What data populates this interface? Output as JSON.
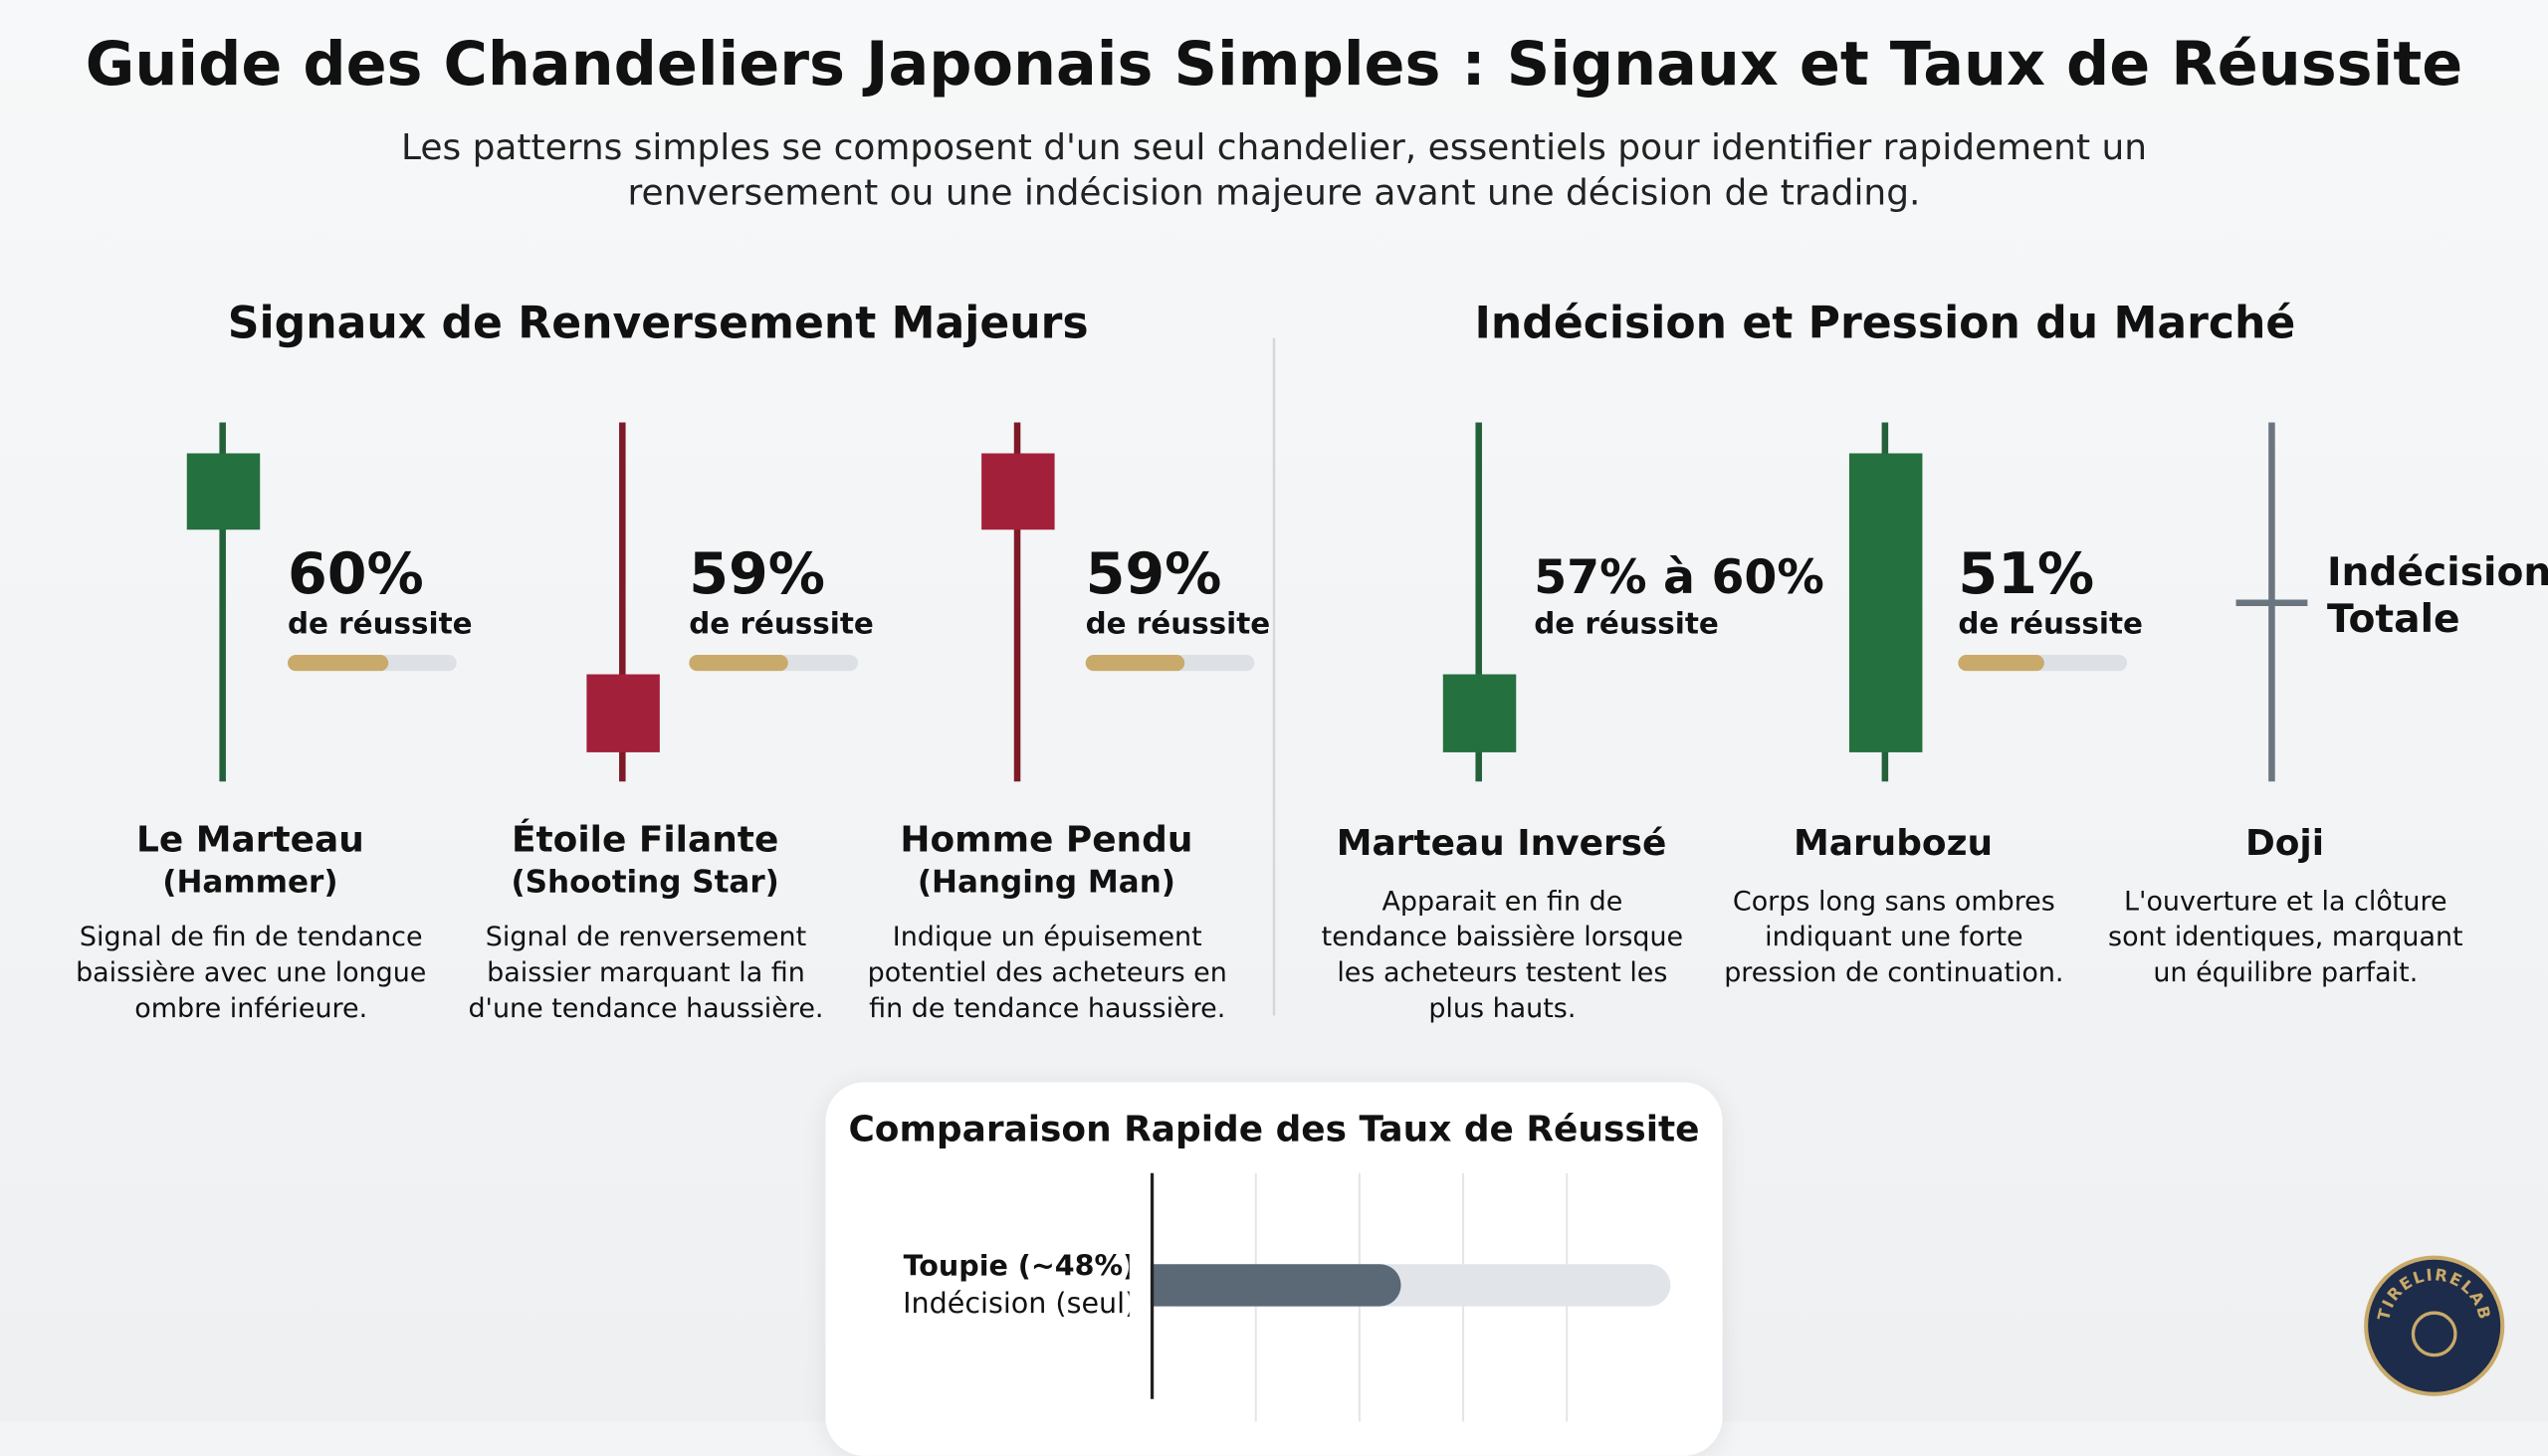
{
  "header": {
    "title": "Guide des Chandeliers Japonais Simples : Signaux et Taux de Réussite",
    "subtitle": "Les patterns simples se composent d'un seul chandelier, essentiels pour identifier rapidement un renversement ou une indécision majeure avant une décision de trading."
  },
  "rate_range": [
    0,
    100
  ],
  "sections": [
    {
      "title": "Signaux de Renversement Majeurs",
      "cards": [
        {
          "rate": {
            "value": 60,
            "label": "60%"
          },
          "rate_caption": "de réussite",
          "name": "Le Marteau",
          "subname": "(Hammer)",
          "description": "Signal de fin de tendance baissière avec une longue ombre inférieure."
        },
        {
          "rate": {
            "value": 59,
            "label": "59%"
          },
          "rate_caption": "de réussite",
          "name": "Étoile Filante",
          "subname": "(Shooting Star)",
          "description": "Signal de renversement baissier marquant la fin d'une tendance haussière."
        },
        {
          "rate": {
            "value": 59,
            "label": "59%"
          },
          "rate_caption": "de réussite",
          "name": "Homme Pendu",
          "subname": "(Hanging Man)",
          "description": "Indique un épuisement potentiel des acheteurs en fin de tendance haussière."
        }
      ]
    },
    {
      "title": "Indécision et Pression du Marché",
      "cards": [
        {
          "rate_label": "57% à 60%",
          "rate_caption": "de réussite",
          "name": "Marteau Inversé",
          "description": "Apparait en fin de tendance baissière lorsque les acheteurs testent les plus hauts."
        },
        {
          "rate": {
            "value": 51,
            "label": "51%"
          },
          "rate_caption": "de réussite",
          "name": "Marubozu",
          "description": "Corps long sans ombres indiquant une forte pression de continuation."
        },
        {
          "rate_label": "Indécision Totale",
          "name": "Doji",
          "description": "L'ouverture et la clôture sont identiques, marquant un équilibre parfait."
        }
      ]
    }
  ],
  "chart_data": {
    "type": "bar",
    "orientation": "horizontal",
    "title": "Comparaison Rapide des Taux de Réussite",
    "categories": [
      [
        "Toupie (~48%)",
        "Indécision (seul)"
      ]
    ],
    "values": [
      48
    ],
    "xlim": [
      0,
      100
    ],
    "xticks": [
      20,
      40,
      60,
      80
    ],
    "grid": true,
    "color": "#5b6876"
  },
  "logo": {
    "text": "TIRELIRELAB"
  }
}
